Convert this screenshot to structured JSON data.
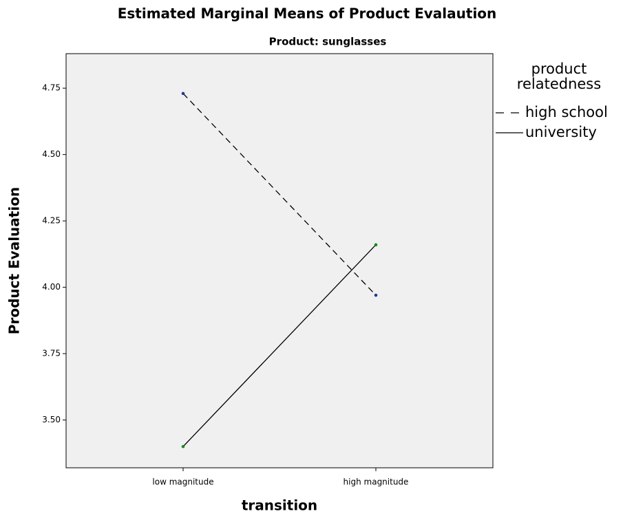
{
  "chart_data": {
    "type": "line",
    "title": "Estimated Marginal Means of Product Evalaution",
    "subtitle": "Product: sunglasses",
    "x_label": "transition",
    "y_label": "Product Evaluation",
    "legend_title": "product relatedness",
    "categories": [
      "low magnitude",
      "high magnitude"
    ],
    "series": [
      {
        "name": "high school",
        "color": "#000000",
        "dash": "dashed",
        "marker_color": "#1f3a93",
        "values": [
          4.73,
          3.97
        ]
      },
      {
        "name": "university",
        "color": "#000000",
        "dash": "solid",
        "marker_color": "#1a8a1a",
        "values": [
          3.4,
          4.16
        ]
      }
    ],
    "ylim": [
      3.32,
      4.88
    ],
    "yticks": [
      {
        "value": 3.5,
        "label": "3.50"
      },
      3.75,
      {
        "value": 4,
        "label": "4.00"
      },
      4.25,
      {
        "value": 4.5,
        "label": "4.50"
      },
      4.75
    ],
    "background": "#f0f0f0"
  }
}
